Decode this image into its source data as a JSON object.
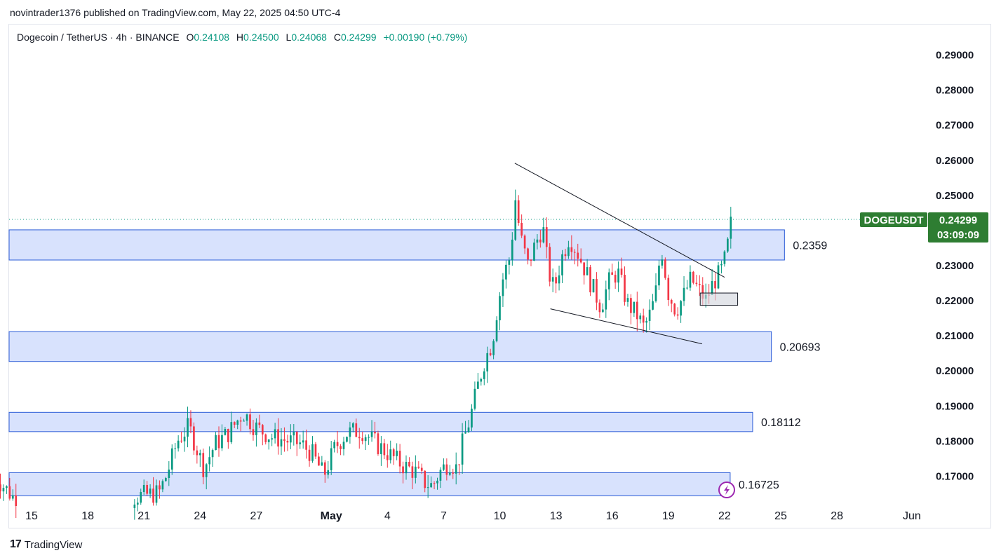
{
  "publisher_line": "novintrader1376 published on TradingView.com, May 22, 2025 04:50 UTC-4",
  "legend": {
    "symbol": "Dogecoin / TetherUS · 4h · BINANCE",
    "open_label": "O",
    "open": "0.24108",
    "high_label": "H",
    "high": "0.24500",
    "low_label": "L",
    "low": "0.24068",
    "close_label": "C",
    "close": "0.24299",
    "change": "+0.00190 (+0.79%)"
  },
  "footer": {
    "brand": "TradingView",
    "logo_glyph": "17"
  },
  "colors": {
    "up": "#089981",
    "down": "#f23645",
    "zone_fill": "#d8e2fd",
    "zone_border": "#2a5bd7",
    "tag_green": "#2e7d32",
    "flash_icon": "#9c27b0"
  },
  "chart_data": {
    "type": "candlestick",
    "symbol": "DOGEUSDT",
    "interval": "4h",
    "ylim": [
      0.1625,
      0.2985
    ],
    "y_ticks": [
      "0.29000",
      "0.28000",
      "0.27000",
      "0.26000",
      "0.25000",
      "0.23000",
      "0.22000",
      "0.21000",
      "0.20000",
      "0.19000",
      "0.18000",
      "0.17000"
    ],
    "y_tick_values": [
      0.29,
      0.28,
      0.27,
      0.26,
      0.25,
      0.23,
      0.22,
      0.21,
      0.2,
      0.19,
      0.18,
      0.17
    ],
    "x_ticks": [
      "15",
      "18",
      "21",
      "24",
      "27",
      "May",
      "4",
      "7",
      "10",
      "13",
      "16",
      "19",
      "22",
      "25",
      "28",
      "Jun"
    ],
    "x_tick_days": [
      15,
      18,
      21,
      24,
      27,
      31,
      34,
      37,
      40,
      43,
      46,
      49,
      52,
      55,
      58,
      62
    ],
    "x_axis_note": "x values are days counted from Apr 1 (Apr 30 = 30, May 1 = 31)",
    "last_price": {
      "label": "DOGEUSDT",
      "value": "0.24299",
      "countdown": "03:09:09"
    },
    "zones": [
      {
        "low": 0.2314,
        "high": 0.24,
        "end_day": 55.2,
        "label": "0.2359"
      },
      {
        "low": 0.2025,
        "high": 0.211,
        "end_day": 54.5,
        "label": "0.20693"
      },
      {
        "low": 0.1825,
        "high": 0.188,
        "end_day": 53.5,
        "label": "0.18112"
      },
      {
        "low": 0.1642,
        "high": 0.1708,
        "end_day": 52.3,
        "label": "0.16725"
      }
    ],
    "trendlines": [
      {
        "from": [
          40.8,
          0.259
        ],
        "to": [
          52.0,
          0.2265
        ]
      },
      {
        "from": [
          42.7,
          0.2175
        ],
        "to": [
          50.8,
          0.2075
        ]
      }
    ],
    "small_box": {
      "day_from": 50.7,
      "day_to": 52.7,
      "low": 0.2185,
      "high": 0.222
    },
    "candles_anchor_points": [
      [
        13.0,
        0.17
      ],
      [
        14.0,
        0.164
      ],
      [
        20.5,
        0.164
      ],
      [
        21.8,
        0.165
      ],
      [
        22.2,
        0.17
      ],
      [
        22.8,
        0.18
      ],
      [
        23.4,
        0.184
      ],
      [
        24.2,
        0.172
      ],
      [
        24.8,
        0.179
      ],
      [
        25.5,
        0.182
      ],
      [
        26.3,
        0.188
      ],
      [
        26.9,
        0.184
      ],
      [
        27.8,
        0.181
      ],
      [
        28.6,
        0.18
      ],
      [
        29.4,
        0.179
      ],
      [
        30.0,
        0.176
      ],
      [
        30.6,
        0.17
      ],
      [
        31.2,
        0.178
      ],
      [
        31.8,
        0.182
      ],
      [
        32.6,
        0.183
      ],
      [
        33.4,
        0.179
      ],
      [
        34.1,
        0.176
      ],
      [
        34.8,
        0.173
      ],
      [
        35.5,
        0.171
      ],
      [
        36.0,
        0.168
      ],
      [
        36.4,
        0.167
      ],
      [
        36.8,
        0.171
      ],
      [
        37.3,
        0.174
      ],
      [
        37.7,
        0.172
      ],
      [
        38.0,
        0.179
      ],
      [
        38.4,
        0.186
      ],
      [
        38.8,
        0.195
      ],
      [
        39.2,
        0.203
      ],
      [
        39.6,
        0.208
      ],
      [
        39.9,
        0.219
      ],
      [
        40.2,
        0.227
      ],
      [
        40.6,
        0.233
      ],
      [
        40.8,
        0.25
      ],
      [
        41.1,
        0.238
      ],
      [
        41.5,
        0.23
      ],
      [
        41.9,
        0.236
      ],
      [
        42.3,
        0.241
      ],
      [
        42.6,
        0.228
      ],
      [
        42.9,
        0.223
      ],
      [
        43.3,
        0.232
      ],
      [
        43.7,
        0.238
      ],
      [
        44.2,
        0.233
      ],
      [
        44.6,
        0.228
      ],
      [
        45.0,
        0.223
      ],
      [
        45.4,
        0.218
      ],
      [
        45.8,
        0.225
      ],
      [
        46.3,
        0.228
      ],
      [
        46.8,
        0.219
      ],
      [
        47.3,
        0.216
      ],
      [
        47.7,
        0.212
      ],
      [
        48.1,
        0.217
      ],
      [
        48.4,
        0.224
      ],
      [
        48.6,
        0.236
      ],
      [
        49.0,
        0.222
      ],
      [
        49.4,
        0.217
      ],
      [
        49.8,
        0.221
      ],
      [
        50.2,
        0.226
      ],
      [
        50.6,
        0.223
      ],
      [
        51.0,
        0.22
      ],
      [
        51.4,
        0.225
      ],
      [
        51.8,
        0.228
      ],
      [
        52.1,
        0.233
      ],
      [
        52.3,
        0.241
      ],
      [
        52.4,
        0.24299
      ]
    ]
  }
}
